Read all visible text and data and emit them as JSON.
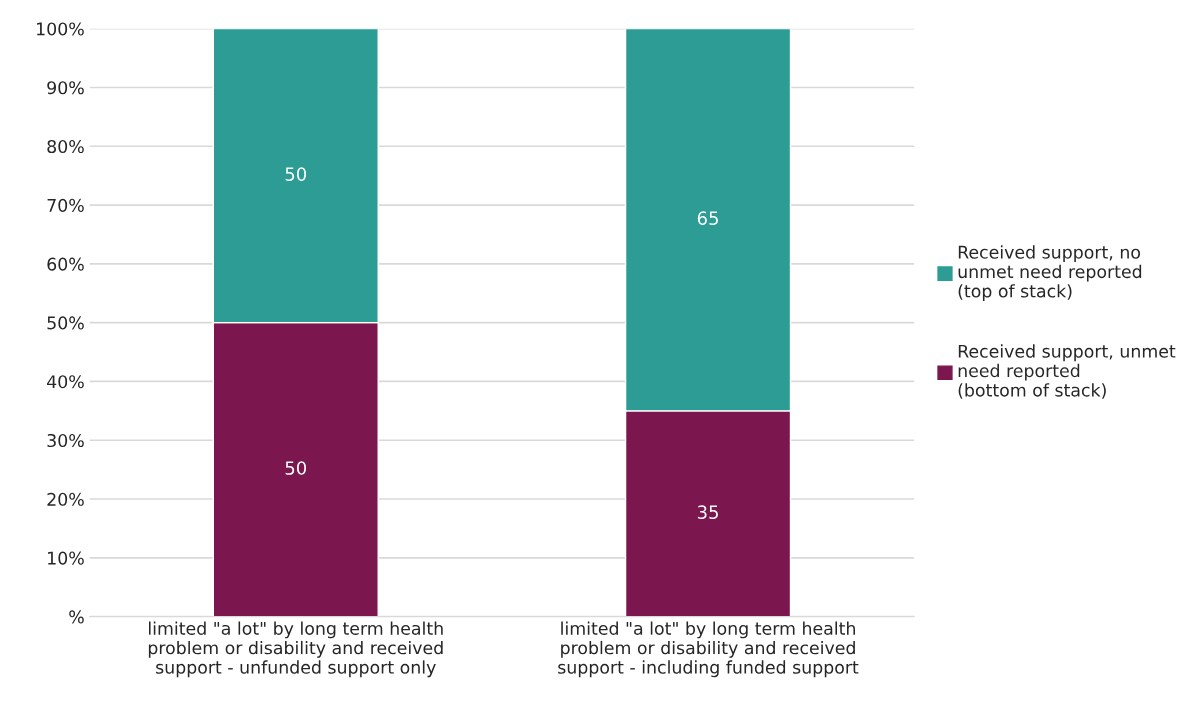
{
  "chart_data": {
    "type": "bar",
    "stacked": true,
    "categories": [
      "limited \"a lot\" by long term health\nproblem or disability and received\nsupport - unfunded support only",
      "limited \"a lot\" by long term health\nproblem or disability and received\nsupport - including funded support"
    ],
    "series": [
      {
        "name": "Received support, unmet\nneed reported\n(bottom of stack)",
        "color": "#7b174e",
        "values": [
          50,
          35
        ]
      },
      {
        "name": "Received support, no\nunmet need reported\n(top of stack)",
        "color": "#2c9c94",
        "values": [
          50,
          65
        ]
      }
    ],
    "ylim": [
      0,
      100
    ],
    "yticks": [
      {
        "value": 0,
        "label": "%"
      },
      {
        "value": 10,
        "label": "10%"
      },
      {
        "value": 20,
        "label": "20%"
      },
      {
        "value": 30,
        "label": "30%"
      },
      {
        "value": 40,
        "label": "40%"
      },
      {
        "value": 50,
        "label": "50%"
      },
      {
        "value": 60,
        "label": "60%"
      },
      {
        "value": 70,
        "label": "70%"
      },
      {
        "value": 80,
        "label": "80%"
      },
      {
        "value": 90,
        "label": "90%"
      },
      {
        "value": 100,
        "label": "100%"
      }
    ],
    "grid": "y",
    "legend": "right",
    "data_labels": true
  }
}
